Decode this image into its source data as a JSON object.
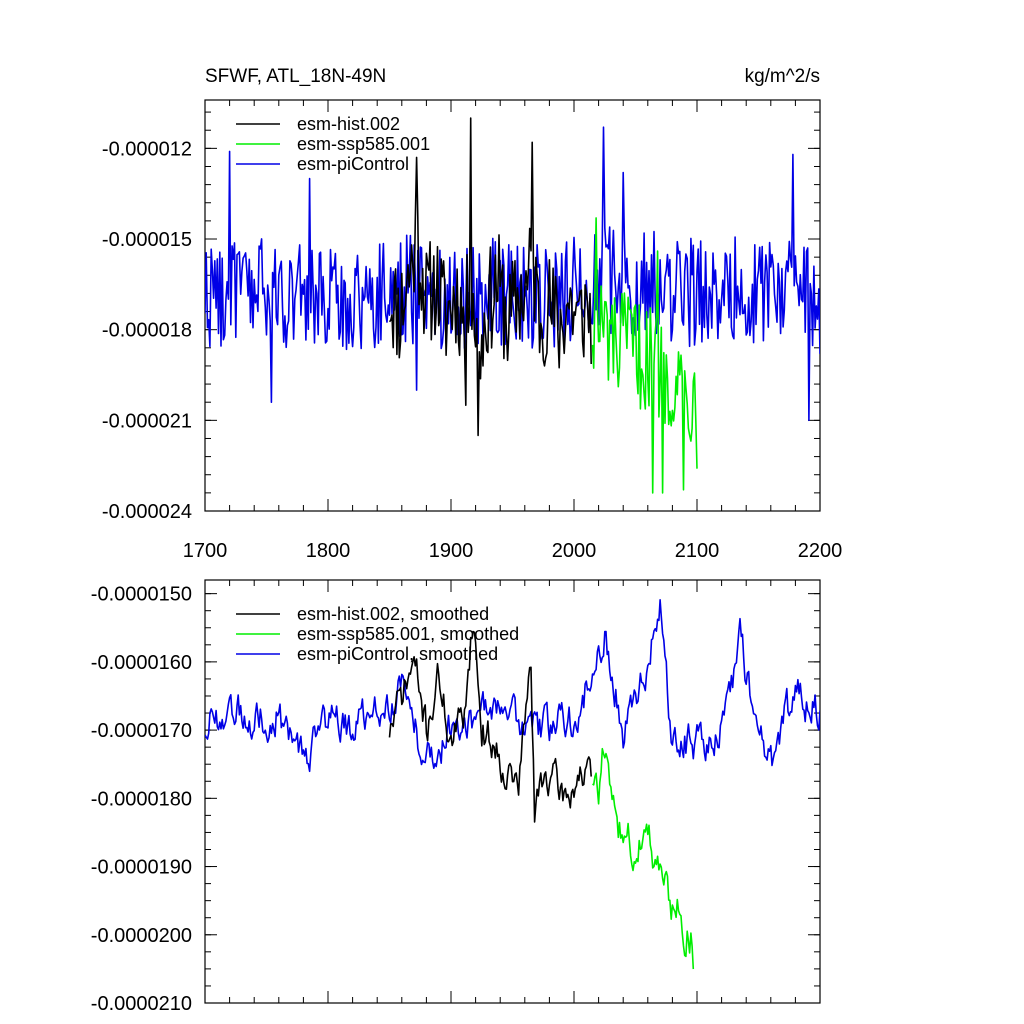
{
  "header": {
    "title_left": "SFWF, ATL_18N-49N",
    "title_right": "kg/m^2/s"
  },
  "colors": {
    "hist": "#000000",
    "ssp": "#00ee00",
    "pic": "#0000e6"
  },
  "chart_data": [
    {
      "type": "line",
      "title": "SFWF, ATL_18N-49N",
      "units": "kg/m^2/s",
      "xlim": [
        1700,
        2200
      ],
      "ylim": [
        -2.4e-05,
        -1.04e-05
      ],
      "xticks": [
        1700,
        1800,
        1900,
        2000,
        2100,
        2200
      ],
      "xtick_labels": [
        "1700",
        "1800",
        "1900",
        "2000",
        "2100",
        "2200"
      ],
      "yticks": [
        -1.2e-05,
        -1.5e-05,
        -1.8e-05,
        -2.1e-05,
        -2.4e-05
      ],
      "ytick_labels": [
        "-0.000012",
        "-0.000015",
        "-0.000018",
        "-0.000021",
        "-0.000024"
      ],
      "legend_position": "top-left",
      "series": [
        {
          "name": "esm-hist.002",
          "color_key": "hist",
          "anchors_x": [
            1850,
            1858,
            1866,
            1872,
            1880,
            1888,
            1896,
            1904,
            1912,
            1916,
            1922,
            1930,
            1938,
            1946,
            1954,
            1962,
            1966,
            1972,
            1980,
            1988,
            1996,
            2004,
            2010,
            2014
          ],
          "anchors_y": [
            -1.68e-05,
            -1.75e-05,
            -1.62e-05,
            -1.5e-05,
            -1.7e-05,
            -1.64e-05,
            -1.76e-05,
            -1.68e-05,
            -1.78e-05,
            -1.58e-05,
            -1.9e-05,
            -1.72e-05,
            -1.64e-05,
            -1.78e-05,
            -1.7e-05,
            -1.66e-05,
            -1.56e-05,
            -1.76e-05,
            -1.72e-05,
            -1.8e-05,
            -1.7e-05,
            -1.78e-05,
            -1.72e-05,
            -1.76e-05
          ],
          "amplitude": 1.8e-06,
          "spikes": [
            [
              1872,
              -1.23e-05
            ],
            [
              1916,
              -1.1e-05
            ],
            [
              1922,
              -2.15e-05
            ],
            [
              1966,
              -1.18e-05
            ],
            [
              1912,
              -2.05e-05
            ]
          ]
        },
        {
          "name": "esm-ssp585.001",
          "color_key": "ssp",
          "anchors_x": [
            2015,
            2025,
            2035,
            2045,
            2055,
            2065,
            2075,
            2085,
            2095,
            2100
          ],
          "anchors_y": [
            -1.77e-05,
            -1.81e-05,
            -1.87e-05,
            -1.84e-05,
            -1.89e-05,
            -1.9e-05,
            -1.94e-05,
            -1.97e-05,
            -2.01e-05,
            -2.05e-05
          ],
          "amplitude": 1.8e-06,
          "spikes": [
            [
              2018,
              -1.43e-05
            ],
            [
              2068,
              -1.54e-05
            ],
            [
              2064,
              -2.34e-05
            ],
            [
              2072,
              -2.34e-05
            ],
            [
              2089,
              -2.33e-05
            ],
            [
              2100,
              -2.26e-05
            ]
          ]
        },
        {
          "name": "esm-piControl",
          "color_key": "pic",
          "anchors_x": [
            1700,
            1740,
            1780,
            1820,
            1860,
            1900,
            1940,
            1980,
            2020,
            2060,
            2100,
            2140,
            2180,
            2200
          ],
          "anchors_y": [
            -1.68e-05,
            -1.67e-05,
            -1.69e-05,
            -1.71e-05,
            -1.66e-05,
            -1.69e-05,
            -1.67e-05,
            -1.7e-05,
            -1.63e-05,
            -1.65e-05,
            -1.68e-05,
            -1.66e-05,
            -1.68e-05,
            -1.7e-05
          ],
          "amplitude": 1.8e-06,
          "spikes": [
            [
              1720,
              -1.21e-05
            ],
            [
              1754,
              -2.04e-05
            ],
            [
              1785,
              -1.3e-05
            ],
            [
              1872,
              -2e-05
            ],
            [
              2024,
              -1.13e-05
            ],
            [
              2040,
              -1.28e-05
            ],
            [
              2178,
              -1.22e-05
            ],
            [
              2191,
              -2.1e-05
            ],
            [
              2200,
              -1.88e-05
            ]
          ]
        }
      ]
    },
    {
      "type": "line",
      "title": "",
      "xlim": [
        1700,
        2200
      ],
      "ylim": [
        -2.1e-05,
        -1.48e-05
      ],
      "xticks": [
        1700,
        1800,
        1900,
        2000,
        2100,
        2200
      ],
      "yticks": [
        -1.5e-05,
        -1.6e-05,
        -1.7e-05,
        -1.8e-05,
        -1.9e-05,
        -2e-05,
        -2.1e-05
      ],
      "ytick_labels": [
        "-0.0000150",
        "-0.0000160",
        "-0.0000170",
        "-0.0000180",
        "-0.0000190",
        "-0.0000200",
        "-0.0000210"
      ],
      "legend_position": "top-left",
      "series": [
        {
          "name": "esm-hist.002, smoothed",
          "color_key": "hist",
          "anchors_x": [
            1850,
            1860,
            1870,
            1880,
            1890,
            1900,
            1910,
            1918,
            1925,
            1935,
            1945,
            1955,
            1965,
            1968,
            1975,
            1985,
            1995,
            2005,
            2014
          ],
          "anchors_y": [
            -1.7e-05,
            -1.65e-05,
            -1.6e-05,
            -1.7e-05,
            -1.62e-05,
            -1.72e-05,
            -1.68e-05,
            -1.53e-05,
            -1.7e-05,
            -1.72e-05,
            -1.76e-05,
            -1.78e-05,
            -1.6e-05,
            -1.83e-05,
            -1.76e-05,
            -1.78e-05,
            -1.8e-05,
            -1.76e-05,
            -1.78e-05
          ],
          "amplitude": 5e-07
        },
        {
          "name": "esm-ssp585.001, smoothed",
          "color_key": "ssp",
          "anchors_x": [
            2015,
            2020,
            2025,
            2030,
            2035,
            2040,
            2045,
            2050,
            2055,
            2060,
            2065,
            2070,
            2075,
            2080,
            2085,
            2090,
            2095,
            2097
          ],
          "anchors_y": [
            -1.77e-05,
            -1.8e-05,
            -1.72e-05,
            -1.8e-05,
            -1.84e-05,
            -1.87e-05,
            -1.85e-05,
            -1.9e-05,
            -1.86e-05,
            -1.83e-05,
            -1.88e-05,
            -1.9e-05,
            -1.93e-05,
            -1.96e-05,
            -1.95e-05,
            -1.99e-05,
            -2e-05,
            -2.06e-05
          ],
          "amplitude": 5e-07
        },
        {
          "name": "esm-piControl, smoothed",
          "color_key": "pic",
          "anchors_x": [
            1700,
            1720,
            1740,
            1760,
            1780,
            1800,
            1820,
            1840,
            1860,
            1880,
            1900,
            1920,
            1940,
            1960,
            1980,
            2000,
            2020,
            2025,
            2040,
            2060,
            2070,
            2080,
            2100,
            2120,
            2135,
            2140,
            2160,
            2180,
            2200
          ],
          "anchors_y": [
            -1.7e-05,
            -1.66e-05,
            -1.68e-05,
            -1.68e-05,
            -1.75e-05,
            -1.68e-05,
            -1.7e-05,
            -1.67e-05,
            -1.64e-05,
            -1.75e-05,
            -1.7e-05,
            -1.68e-05,
            -1.67e-05,
            -1.69e-05,
            -1.7e-05,
            -1.68e-05,
            -1.6e-05,
            -1.55e-05,
            -1.7e-05,
            -1.6e-05,
            -1.52e-05,
            -1.72e-05,
            -1.72e-05,
            -1.7e-05,
            -1.57e-05,
            -1.62e-05,
            -1.75e-05,
            -1.64e-05,
            -1.68e-05
          ],
          "amplitude": 5e-07
        }
      ]
    }
  ]
}
